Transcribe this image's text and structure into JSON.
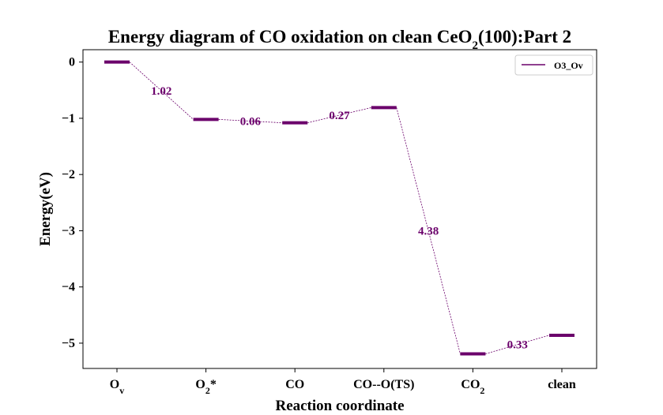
{
  "chart_data": {
    "type": "line",
    "title": "Energy diagram of CO oxidation on clean CeO2(100):Part 2",
    "xlabel": "Reaction coordinate",
    "ylabel": "Energy(eV)",
    "categories": [
      "Ov",
      "O2*",
      "CO",
      "CO--O(TS)",
      "CO2",
      "clean"
    ],
    "ylim": [
      -5.45,
      0.22
    ],
    "yticks": [
      0,
      -1,
      -2,
      -3,
      -4,
      -5
    ],
    "ytick_labels": [
      "0",
      "−1",
      "−2",
      "−3",
      "−4",
      "−5"
    ],
    "series": [
      {
        "name": "O3_Ov",
        "color": "#6b006b",
        "values": [
          0.0,
          -1.02,
          -1.08,
          -0.81,
          -5.19,
          -4.86
        ]
      }
    ],
    "annotations": [
      "1.02",
      "0.06",
      "0.27",
      "4.38",
      "0.33"
    ],
    "legend_position": "top-right",
    "grid": false
  }
}
